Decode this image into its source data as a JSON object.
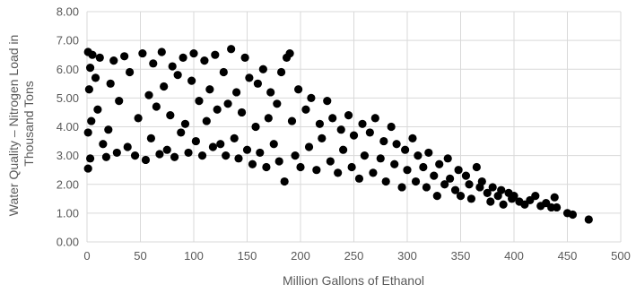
{
  "chart_data": {
    "type": "scatter",
    "title": "",
    "xlabel": "Million Gallons of Ethanol",
    "ylabel_lines": [
      "Water Quality – Nitrogen Load in",
      "Thousand Tons"
    ],
    "xlim": [
      0,
      500
    ],
    "ylim": [
      0,
      8
    ],
    "x_ticks": [
      0,
      50,
      100,
      150,
      200,
      250,
      300,
      350,
      400,
      450,
      500
    ],
    "y_ticks": [
      "0.00",
      "1.00",
      "2.00",
      "3.00",
      "4.00",
      "5.00",
      "6.00",
      "7.00",
      "8.00"
    ],
    "grid": "both",
    "marker_color": "#000000",
    "series": [
      {
        "points": [
          [
            1,
            6.6
          ],
          [
            3,
            6.05
          ],
          [
            5,
            6.5
          ],
          [
            2,
            5.3
          ],
          [
            4,
            4.2
          ],
          [
            1,
            3.8
          ],
          [
            3,
            2.9
          ],
          [
            1,
            2.55
          ],
          [
            8,
            5.7
          ],
          [
            12,
            6.4
          ],
          [
            10,
            4.6
          ],
          [
            15,
            3.4
          ],
          [
            18,
            2.95
          ],
          [
            20,
            3.9
          ],
          [
            22,
            5.5
          ],
          [
            25,
            6.3
          ],
          [
            28,
            3.1
          ],
          [
            30,
            4.9
          ],
          [
            35,
            6.45
          ],
          [
            38,
            3.3
          ],
          [
            40,
            5.9
          ],
          [
            45,
            3.0
          ],
          [
            48,
            4.3
          ],
          [
            52,
            6.55
          ],
          [
            55,
            2.85
          ],
          [
            58,
            5.1
          ],
          [
            60,
            3.6
          ],
          [
            62,
            6.2
          ],
          [
            65,
            4.7
          ],
          [
            68,
            3.05
          ],
          [
            70,
            6.6
          ],
          [
            72,
            5.4
          ],
          [
            75,
            3.2
          ],
          [
            78,
            4.4
          ],
          [
            80,
            6.1
          ],
          [
            82,
            2.95
          ],
          [
            85,
            5.8
          ],
          [
            88,
            3.8
          ],
          [
            90,
            6.4
          ],
          [
            92,
            4.1
          ],
          [
            95,
            3.1
          ],
          [
            98,
            5.6
          ],
          [
            100,
            6.55
          ],
          [
            102,
            3.5
          ],
          [
            105,
            4.9
          ],
          [
            108,
            3.0
          ],
          [
            110,
            6.3
          ],
          [
            112,
            4.2
          ],
          [
            115,
            5.3
          ],
          [
            118,
            3.3
          ],
          [
            120,
            6.5
          ],
          [
            122,
            4.6
          ],
          [
            125,
            3.4
          ],
          [
            128,
            5.9
          ],
          [
            130,
            3.0
          ],
          [
            132,
            4.8
          ],
          [
            135,
            6.7
          ],
          [
            138,
            3.6
          ],
          [
            140,
            5.2
          ],
          [
            142,
            2.9
          ],
          [
            145,
            4.5
          ],
          [
            148,
            6.4
          ],
          [
            150,
            3.2
          ],
          [
            152,
            5.7
          ],
          [
            155,
            2.7
          ],
          [
            158,
            4.0
          ],
          [
            160,
            5.5
          ],
          [
            162,
            3.1
          ],
          [
            165,
            6.0
          ],
          [
            168,
            2.6
          ],
          [
            170,
            4.3
          ],
          [
            172,
            5.2
          ],
          [
            175,
            3.4
          ],
          [
            178,
            4.8
          ],
          [
            180,
            2.8
          ],
          [
            182,
            5.9
          ],
          [
            185,
            2.1
          ],
          [
            187,
            6.4
          ],
          [
            190,
            6.55
          ],
          [
            192,
            4.2
          ],
          [
            195,
            3.0
          ],
          [
            198,
            5.3
          ],
          [
            200,
            2.6
          ],
          [
            205,
            4.6
          ],
          [
            208,
            3.3
          ],
          [
            210,
            5.0
          ],
          [
            215,
            2.5
          ],
          [
            218,
            4.1
          ],
          [
            220,
            3.6
          ],
          [
            225,
            4.9
          ],
          [
            228,
            2.8
          ],
          [
            230,
            4.3
          ],
          [
            235,
            2.4
          ],
          [
            238,
            3.9
          ],
          [
            240,
            3.2
          ],
          [
            245,
            4.4
          ],
          [
            248,
            2.6
          ],
          [
            250,
            3.7
          ],
          [
            255,
            2.2
          ],
          [
            258,
            4.1
          ],
          [
            260,
            3.0
          ],
          [
            265,
            3.8
          ],
          [
            268,
            2.4
          ],
          [
            270,
            4.3
          ],
          [
            275,
            2.9
          ],
          [
            278,
            3.5
          ],
          [
            280,
            2.1
          ],
          [
            285,
            4.0
          ],
          [
            288,
            2.7
          ],
          [
            290,
            3.4
          ],
          [
            295,
            1.9
          ],
          [
            298,
            3.2
          ],
          [
            300,
            2.5
          ],
          [
            305,
            3.6
          ],
          [
            308,
            2.1
          ],
          [
            310,
            3.0
          ],
          [
            315,
            2.6
          ],
          [
            318,
            1.9
          ],
          [
            320,
            3.1
          ],
          [
            325,
            2.3
          ],
          [
            328,
            1.6
          ],
          [
            330,
            2.7
          ],
          [
            335,
            2.0
          ],
          [
            338,
            2.9
          ],
          [
            340,
            2.2
          ],
          [
            345,
            1.8
          ],
          [
            348,
            2.5
          ],
          [
            350,
            1.6
          ],
          [
            355,
            2.3
          ],
          [
            358,
            2.0
          ],
          [
            360,
            1.5
          ],
          [
            365,
            2.6
          ],
          [
            368,
            1.9
          ],
          [
            370,
            2.1
          ],
          [
            375,
            1.7
          ],
          [
            378,
            1.4
          ],
          [
            380,
            1.9
          ],
          [
            385,
            1.6
          ],
          [
            388,
            1.8
          ],
          [
            390,
            1.3
          ],
          [
            395,
            1.7
          ],
          [
            398,
            1.5
          ],
          [
            400,
            1.6
          ],
          [
            405,
            1.4
          ],
          [
            410,
            1.3
          ],
          [
            415,
            1.45
          ],
          [
            420,
            1.6
          ],
          [
            425,
            1.25
          ],
          [
            430,
            1.35
          ],
          [
            435,
            1.2
          ],
          [
            438,
            1.55
          ],
          [
            440,
            1.2
          ],
          [
            450,
            1.0
          ],
          [
            455,
            0.95
          ],
          [
            470,
            0.78
          ]
        ]
      }
    ]
  }
}
